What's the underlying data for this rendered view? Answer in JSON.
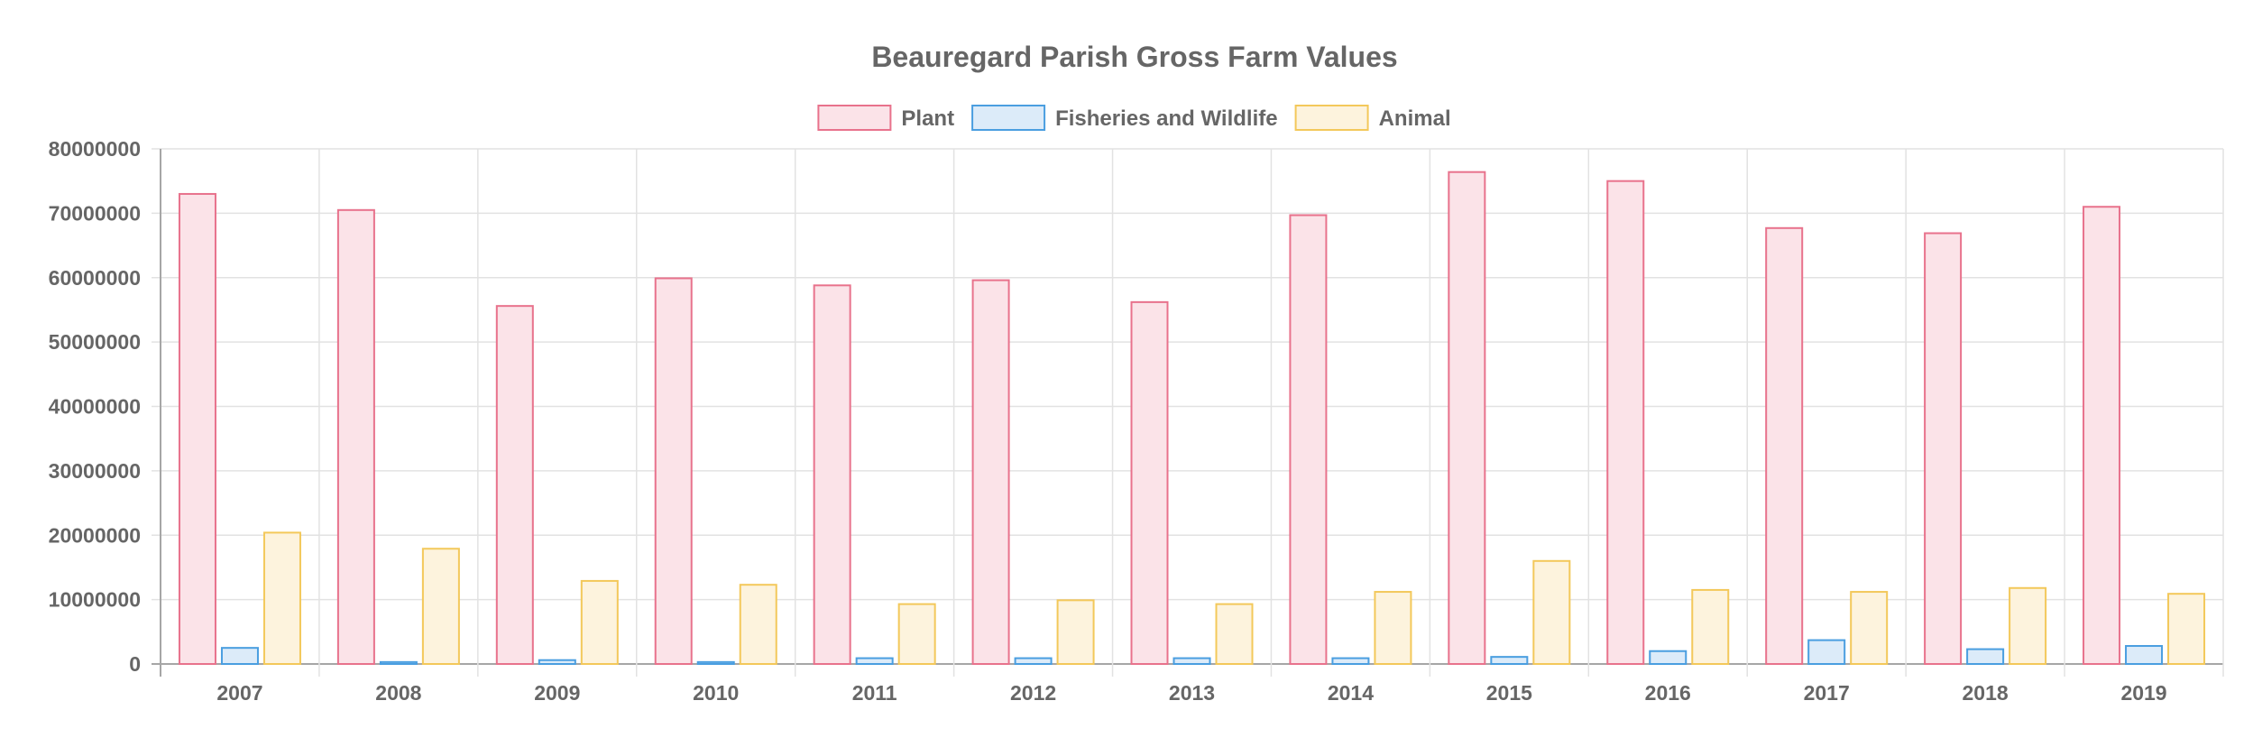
{
  "chart_data": {
    "type": "bar",
    "title": "Beauregard Parish Gross Farm Values",
    "xlabel": "",
    "ylabel": "",
    "ylim": [
      0,
      80000000
    ],
    "yticks": [
      "0",
      "10000000",
      "20000000",
      "30000000",
      "40000000",
      "50000000",
      "60000000",
      "70000000",
      "80000000"
    ],
    "grid": true,
    "legend_position": "top",
    "categories": [
      "2007",
      "2008",
      "2009",
      "2010",
      "2011",
      "2012",
      "2013",
      "2014",
      "2015",
      "2016",
      "2017",
      "2018",
      "2019"
    ],
    "series": [
      {
        "name": "Plant",
        "border_color": "#e8728c",
        "fill_color": "#fbe3e8",
        "values": [
          73000000,
          70500000,
          55600000,
          59900000,
          58800000,
          59600000,
          56200000,
          69700000,
          76400000,
          75000000,
          67700000,
          66900000,
          71000000
        ]
      },
      {
        "name": "Fisheries and Wildlife",
        "border_color": "#4a9ee0",
        "fill_color": "#dcebf9",
        "values": [
          2500000,
          300000,
          600000,
          300000,
          900000,
          900000,
          900000,
          900000,
          1100000,
          2000000,
          3700000,
          2300000,
          2800000
        ]
      },
      {
        "name": "Animal",
        "border_color": "#f3c85a",
        "fill_color": "#fdf3dd",
        "values": [
          20400000,
          17900000,
          12900000,
          12300000,
          9300000,
          9900000,
          9300000,
          11200000,
          16000000,
          11500000,
          11200000,
          11800000,
          10900000
        ]
      }
    ]
  }
}
